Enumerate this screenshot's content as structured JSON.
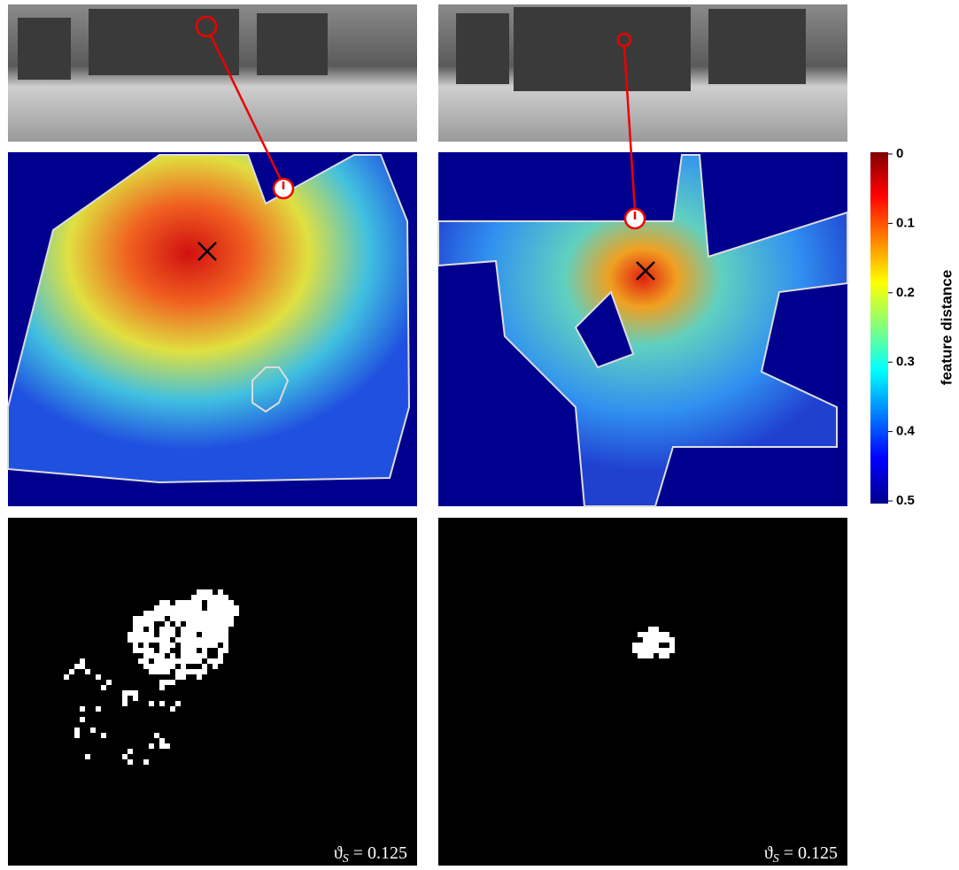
{
  "colorbar": {
    "label": "feature distance",
    "lim": [
      0,
      0.5
    ],
    "ticks": [
      0,
      0.1,
      0.2,
      0.3,
      0.4,
      0.5
    ]
  },
  "panels": [
    {
      "threshold": {
        "symbol": "ϑ",
        "subscript": "S",
        "relation": "=",
        "value": 0.125
      }
    },
    {
      "threshold": {
        "symbol": "ϑ",
        "subscript": "S",
        "relation": "=",
        "value": 0.125
      }
    }
  ]
}
